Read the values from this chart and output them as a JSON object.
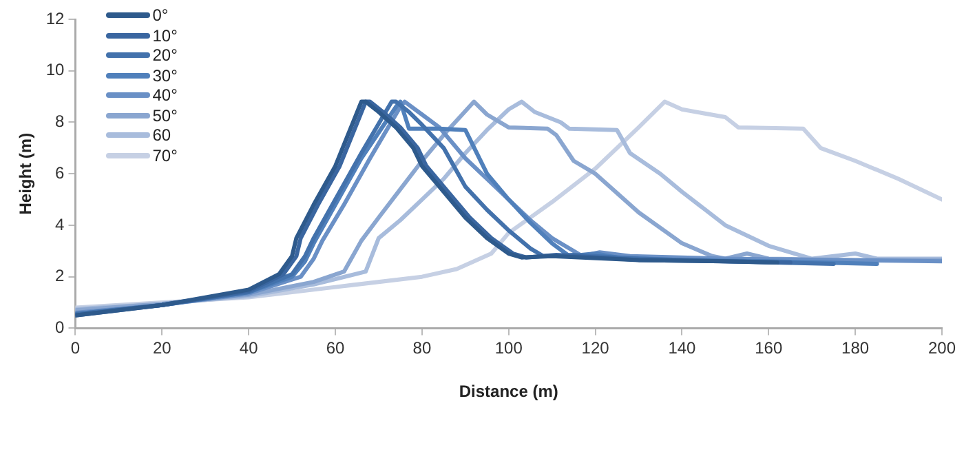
{
  "chart_data": {
    "type": "line",
    "xlabel": "Distance (m)",
    "ylabel": "Height (m)",
    "xlim": [
      0,
      200
    ],
    "xticks": [
      0,
      20,
      40,
      60,
      80,
      100,
      120,
      140,
      160,
      180,
      200
    ],
    "ylim": [
      0,
      12
    ],
    "yticks": [
      0,
      2,
      4,
      6,
      8,
      10,
      12
    ],
    "grid": false,
    "legend": "top left",
    "marker": "none",
    "line_style": "solid",
    "series": [
      {
        "name": "0°",
        "color": "#2e5a8c",
        "x": [
          0,
          20,
          40,
          47,
          50,
          51,
          55,
          60,
          66,
          67,
          70,
          74,
          78,
          80,
          85,
          90,
          95,
          100,
          103,
          110,
          130,
          150,
          162
        ],
        "values": [
          0.5,
          0.9,
          1.5,
          2.1,
          2.8,
          3.5,
          4.8,
          6.3,
          8.8,
          8.8,
          8.4,
          7.8,
          7.0,
          6.3,
          5.3,
          4.3,
          3.5,
          2.9,
          2.75,
          2.8,
          2.65,
          2.6,
          2.55
        ]
      },
      {
        "name": "10°",
        "color": "#3a66a0",
        "x": [
          0,
          20,
          40,
          48,
          51,
          52,
          56,
          61,
          67,
          68,
          71,
          75,
          79,
          81,
          86,
          91,
          96,
          101,
          104,
          111,
          130,
          150,
          165
        ],
        "values": [
          0.5,
          0.9,
          1.45,
          2.1,
          2.8,
          3.5,
          4.8,
          6.3,
          8.8,
          8.8,
          8.4,
          7.8,
          7.0,
          6.3,
          5.3,
          4.3,
          3.5,
          2.9,
          2.75,
          2.85,
          2.65,
          2.6,
          2.55
        ]
      },
      {
        "name": "20°",
        "color": "#4372ac",
        "x": [
          0,
          20,
          40,
          50,
          53,
          55,
          60,
          66,
          73,
          74,
          77,
          80,
          85,
          90,
          95,
          100,
          105,
          108,
          115,
          130,
          150,
          175
        ],
        "values": [
          0.55,
          0.9,
          1.4,
          2.1,
          2.8,
          3.5,
          5.0,
          6.8,
          8.8,
          8.8,
          8.4,
          7.9,
          7.0,
          5.5,
          4.6,
          3.8,
          3.1,
          2.8,
          2.85,
          2.7,
          2.6,
          2.5
        ]
      },
      {
        "name": "30°",
        "color": "#5080bb",
        "x": [
          0,
          20,
          40,
          50,
          53,
          55,
          60,
          66,
          74,
          75,
          77,
          84,
          90,
          95,
          100,
          105,
          110,
          114,
          120,
          125,
          140,
          160,
          185
        ],
        "values": [
          0.55,
          0.9,
          1.4,
          2.0,
          2.6,
          3.3,
          4.8,
          6.6,
          8.6,
          8.8,
          7.75,
          7.75,
          7.7,
          6.0,
          5.0,
          4.1,
          3.3,
          2.8,
          2.9,
          2.75,
          2.65,
          2.6,
          2.5
        ]
      },
      {
        "name": "40°",
        "color": "#6a90c6",
        "x": [
          0,
          20,
          40,
          52,
          55,
          57,
          62,
          68,
          75,
          76,
          80,
          84,
          90,
          95,
          100,
          105,
          110,
          117,
          121,
          128,
          150,
          175,
          200
        ],
        "values": [
          0.6,
          0.9,
          1.35,
          2.0,
          2.7,
          3.4,
          4.8,
          6.6,
          8.6,
          8.8,
          8.3,
          7.8,
          6.6,
          5.8,
          5.0,
          4.2,
          3.5,
          2.8,
          2.95,
          2.8,
          2.7,
          2.65,
          2.6
        ]
      },
      {
        "name": "50°",
        "color": "#8aa6d0",
        "x": [
          0,
          20,
          40,
          55,
          62,
          66,
          70,
          75,
          80,
          86,
          92,
          95,
          100,
          109,
          111,
          115,
          120,
          130,
          140,
          147,
          150,
          155,
          160,
          180,
          200
        ],
        "values": [
          0.7,
          0.95,
          1.3,
          1.8,
          2.2,
          3.4,
          4.3,
          5.4,
          6.5,
          7.7,
          8.8,
          8.3,
          7.8,
          7.75,
          7.5,
          6.5,
          6.0,
          4.5,
          3.3,
          2.8,
          2.7,
          2.9,
          2.7,
          2.65,
          2.65
        ]
      },
      {
        "name": "60",
        "color": "#a8bcdc",
        "x": [
          0,
          20,
          40,
          55,
          67,
          70,
          75,
          80,
          85,
          90,
          95,
          100,
          103,
          106,
          112,
          114,
          125,
          128,
          135,
          140,
          150,
          160,
          170,
          180,
          185,
          200
        ],
        "values": [
          0.75,
          0.95,
          1.25,
          1.7,
          2.2,
          3.5,
          4.2,
          5.0,
          5.8,
          6.8,
          7.7,
          8.5,
          8.8,
          8.4,
          8.0,
          7.75,
          7.7,
          6.8,
          6.0,
          5.3,
          4.0,
          3.2,
          2.7,
          2.9,
          2.7,
          2.7
        ]
      },
      {
        "name": "70°",
        "color": "#c6d0e4",
        "x": [
          0,
          20,
          40,
          60,
          80,
          88,
          96,
          100,
          110,
          120,
          130,
          136,
          140,
          150,
          153,
          168,
          172,
          180,
          190,
          200
        ],
        "values": [
          0.8,
          1.0,
          1.2,
          1.6,
          2.0,
          2.3,
          2.9,
          3.7,
          4.9,
          6.2,
          7.8,
          8.8,
          8.5,
          8.2,
          7.8,
          7.75,
          7.0,
          6.5,
          5.8,
          5.0
        ]
      }
    ]
  }
}
